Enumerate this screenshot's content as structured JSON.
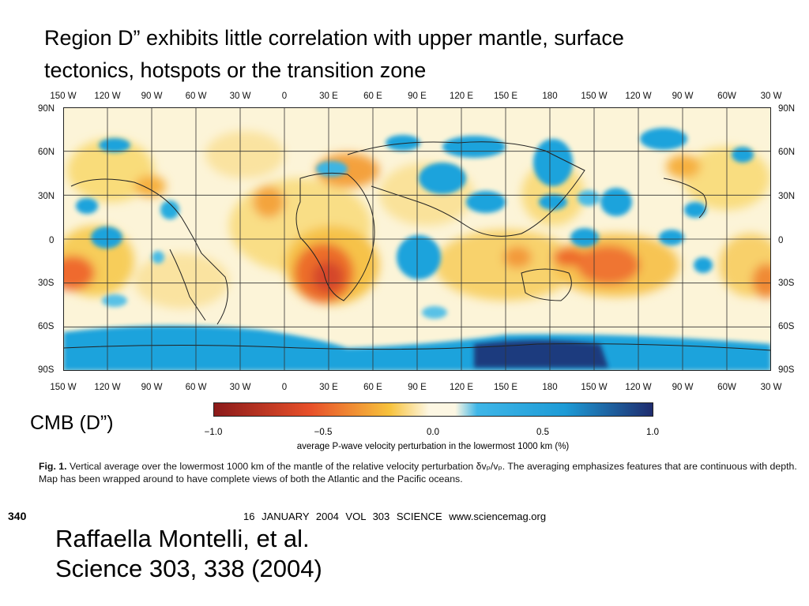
{
  "slide": {
    "title_line1": "Region D” exhibits little correlation with upper mantle, surface",
    "title_line2": "tectonics, hotspots or the transition zone",
    "side_label": "CMB (D”)"
  },
  "map": {
    "lon_labels": [
      "150 W",
      "120 W",
      "90 W",
      "60 W",
      "30 W",
      "0",
      "30 E",
      "60 E",
      "90 E",
      "120 E",
      "150 E",
      "180",
      "150 W",
      "120 W",
      "90 W",
      "60W",
      "30 W"
    ],
    "lat_labels": [
      "90N",
      "60N",
      "30N",
      "0",
      "30S",
      "60S",
      "90S"
    ],
    "lon_values": [
      -150,
      -120,
      -90,
      -60,
      -30,
      0,
      30,
      60,
      90,
      120,
      150,
      180,
      210,
      240,
      270,
      300,
      330
    ],
    "lat_values": [
      90,
      60,
      30,
      0,
      -30,
      -60,
      -90
    ],
    "colors": {
      "slow_strong": "#8b1a1a",
      "slow": "#e8502a",
      "slow_weak": "#f7c23c",
      "neutral": "#fdf7e3",
      "fast_weak": "#3fb6e8",
      "fast": "#1d9bd6",
      "fast_strong": "#1f2c6e"
    }
  },
  "colorbar": {
    "ticks": [
      "−1.0",
      "−0.5",
      "0.0",
      "0.5",
      "1.0"
    ],
    "tick_values": [
      -1.0,
      -0.5,
      0.0,
      0.5,
      1.0
    ],
    "label": "average P-wave velocity perturbation in the lowermost 1000 km (%)"
  },
  "caption": {
    "fig_label": "Fig. 1.",
    "text": "Vertical average over the lowermost 1000 km of the mantle of the relative velocity perturbation δvₚ/vₚ. The averaging emphasizes features that are continuous with depth. Map has been wrapped around to have complete views of both the Atlantic and the Pacific oceans."
  },
  "footer": {
    "page": "340",
    "text": "16 JANUARY 2004   VOL 303   SCIENCE   www.sciencemag.org"
  },
  "citation": {
    "line1": "Raffaella Montelli, et al.",
    "line2": "Science 303, 338 (2004)"
  }
}
